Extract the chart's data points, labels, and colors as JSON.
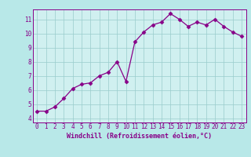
{
  "x": [
    0,
    1,
    2,
    3,
    4,
    5,
    6,
    7,
    8,
    9,
    10,
    11,
    12,
    13,
    14,
    15,
    16,
    17,
    18,
    19,
    20,
    21,
    22,
    23
  ],
  "y": [
    4.5,
    4.5,
    4.8,
    5.4,
    6.1,
    6.4,
    6.5,
    7.0,
    7.25,
    8.0,
    6.6,
    9.4,
    10.1,
    10.6,
    10.8,
    11.4,
    11.0,
    10.5,
    10.8,
    10.6,
    11.0,
    10.5,
    10.1,
    9.8
  ],
  "xlabel": "Windchill (Refroidissement éolien,°C)",
  "xlim": [
    -0.5,
    23.5
  ],
  "ylim": [
    3.7,
    11.7
  ],
  "yticks": [
    4,
    5,
    6,
    7,
    8,
    9,
    10,
    11
  ],
  "xticks": [
    0,
    1,
    2,
    3,
    4,
    5,
    6,
    7,
    8,
    9,
    10,
    11,
    12,
    13,
    14,
    15,
    16,
    17,
    18,
    19,
    20,
    21,
    22,
    23
  ],
  "line_color": "#880088",
  "marker": "D",
  "marker_size": 2.5,
  "bg_color": "#b8e8e8",
  "plot_bg_color": "#d0f0f0",
  "grid_color": "#99cccc",
  "font_color": "#880088",
  "tick_fontsize": 5.5,
  "xlabel_fontsize": 6.0
}
